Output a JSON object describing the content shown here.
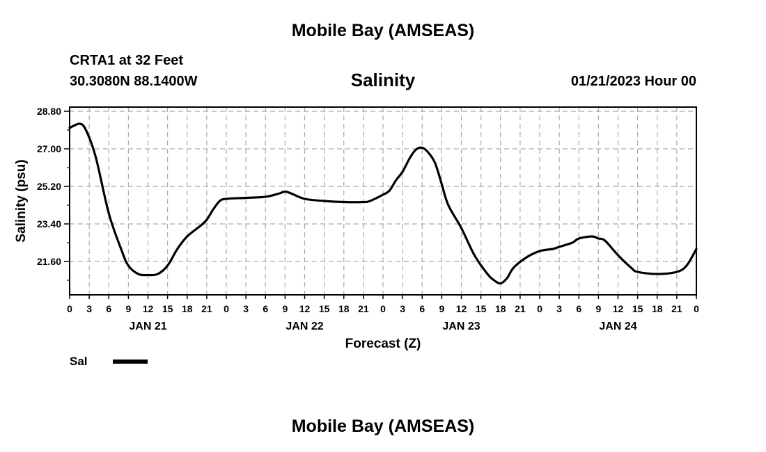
{
  "header": {
    "title": "Mobile Bay (AMSEAS)",
    "station": "CRTA1 at 32 Feet",
    "coords": "30.3080N  88.1400W",
    "variable": "Salinity",
    "timestamp": "01/21/2023 Hour 00"
  },
  "footer": {
    "title": "Mobile Bay (AMSEAS)"
  },
  "legend": {
    "label": "Sal",
    "color": "#000000"
  },
  "chart_data": {
    "type": "line",
    "title": "Salinity",
    "xlabel": "Forecast (Z)",
    "ylabel": "Salinity (psu)",
    "xlim": [
      0,
      96
    ],
    "ylim": [
      20.0,
      29.0
    ],
    "yticks": [
      21.6,
      23.4,
      25.2,
      27.0,
      28.8
    ],
    "ytick_labels": [
      "21.60",
      "23.40",
      "25.20",
      "27.00",
      "28.80"
    ],
    "xticks": [
      0,
      3,
      6,
      9,
      12,
      15,
      18,
      21,
      24,
      27,
      30,
      33,
      36,
      39,
      42,
      45,
      48,
      51,
      54,
      57,
      60,
      63,
      66,
      69,
      72,
      75,
      78,
      81,
      84,
      87,
      90,
      93,
      96
    ],
    "xtick_labels": [
      "0",
      "3",
      "6",
      "9",
      "12",
      "15",
      "18",
      "21",
      "0",
      "3",
      "6",
      "9",
      "12",
      "15",
      "18",
      "21",
      "0",
      "3",
      "6",
      "9",
      "12",
      "15",
      "18",
      "21",
      "0",
      "3",
      "6",
      "9",
      "12",
      "15",
      "18",
      "21",
      "0"
    ],
    "day_labels": [
      {
        "hour": 12,
        "label": "JAN 21"
      },
      {
        "hour": 36,
        "label": "JAN 22"
      },
      {
        "hour": 60,
        "label": "JAN 23"
      },
      {
        "hour": 84,
        "label": "JAN 24"
      }
    ],
    "grid": true,
    "legend_position": "bottom-left",
    "series": [
      {
        "name": "Sal",
        "color": "#000000",
        "x": [
          0,
          1.5,
          2.5,
          4,
          6,
          8,
          9,
          10.5,
          12,
          13.5,
          15,
          16.5,
          18,
          20,
          21,
          22,
          23,
          24,
          27,
          30,
          32,
          33,
          34,
          36,
          39,
          42,
          45,
          46,
          48,
          49,
          50,
          51,
          52,
          53,
          54,
          55,
          56,
          57,
          58,
          60,
          62,
          64,
          65,
          66,
          67,
          68,
          70,
          72,
          74,
          75,
          77,
          78,
          80,
          81,
          82,
          84,
          86,
          87,
          90,
          93,
          94.5,
          96
        ],
        "y": [
          28.0,
          28.2,
          27.9,
          26.6,
          23.9,
          22.1,
          21.4,
          21.0,
          20.95,
          21.0,
          21.4,
          22.2,
          22.8,
          23.3,
          23.6,
          24.1,
          24.5,
          24.6,
          24.65,
          24.7,
          24.85,
          24.95,
          24.85,
          24.6,
          24.5,
          24.45,
          24.45,
          24.5,
          24.8,
          25.0,
          25.5,
          25.9,
          26.5,
          26.95,
          27.05,
          26.8,
          26.3,
          25.3,
          24.3,
          23.2,
          21.9,
          21.0,
          20.7,
          20.55,
          20.8,
          21.3,
          21.8,
          22.1,
          22.2,
          22.3,
          22.5,
          22.7,
          22.8,
          22.7,
          22.6,
          21.9,
          21.3,
          21.1,
          21.0,
          21.1,
          21.4,
          22.2
        ]
      }
    ]
  }
}
